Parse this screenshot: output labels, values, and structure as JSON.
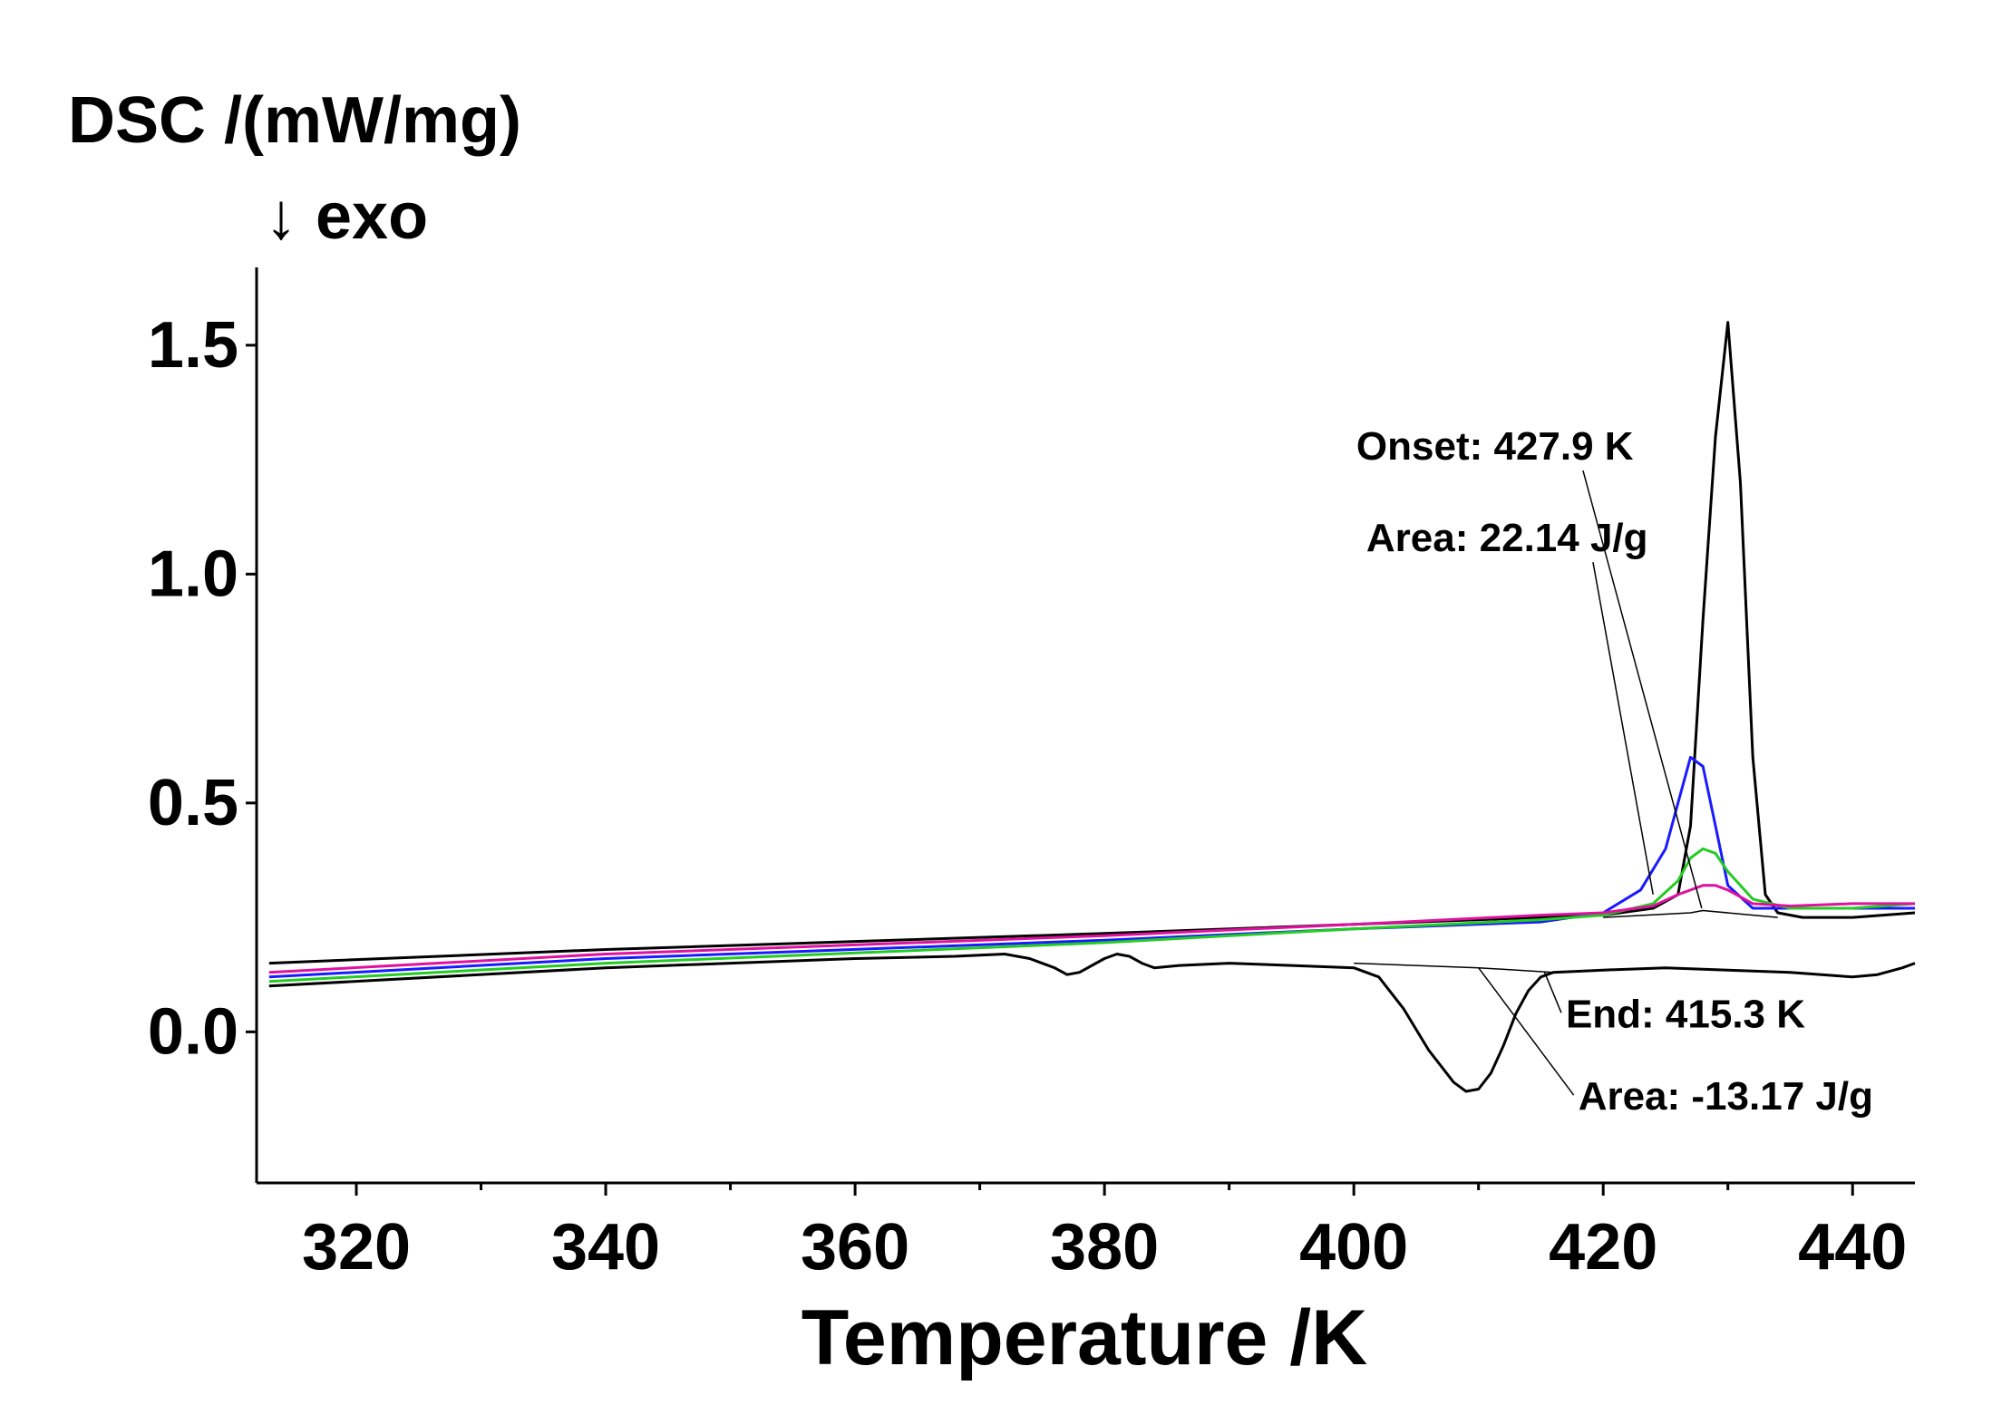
{
  "chart_data": {
    "type": "line",
    "title": "",
    "ylabel": "DSC /(mW/mg)",
    "ylabel_direction": "↓ exo",
    "xlabel": "Temperature /K",
    "xlim": [
      312,
      445
    ],
    "ylim": [
      -0.33,
      1.67
    ],
    "x_ticks": [
      320,
      340,
      360,
      380,
      400,
      420,
      440
    ],
    "x_tick_labels": [
      "320",
      "340",
      "360",
      "380",
      "400",
      "420",
      "440"
    ],
    "y_ticks": [
      0.0,
      0.5,
      1.0,
      1.5
    ],
    "y_tick_labels": [
      "0.0",
      "0.5",
      "1.0",
      "1.5"
    ],
    "grid": false,
    "series": [
      {
        "name": "heating-black",
        "color": "#000000",
        "x": [
          313,
          340,
          380,
          400,
          415,
          420,
          424,
          426,
          427,
          428,
          429,
          430,
          431,
          432,
          433,
          434,
          436,
          440,
          445
        ],
        "y": [
          0.15,
          0.18,
          0.215,
          0.235,
          0.25,
          0.255,
          0.27,
          0.3,
          0.45,
          0.9,
          1.3,
          1.55,
          1.2,
          0.6,
          0.3,
          0.26,
          0.25,
          0.25,
          0.26
        ]
      },
      {
        "name": "heating-blue",
        "color": "#1a1aff",
        "x": [
          313,
          340,
          380,
          400,
          415,
          420,
          423,
          425,
          426,
          427,
          428,
          429,
          430,
          432,
          435,
          440,
          445
        ],
        "y": [
          0.12,
          0.16,
          0.2,
          0.225,
          0.24,
          0.26,
          0.31,
          0.4,
          0.5,
          0.6,
          0.58,
          0.45,
          0.32,
          0.27,
          0.27,
          0.27,
          0.27
        ]
      },
      {
        "name": "heating-green",
        "color": "#22cc22",
        "x": [
          313,
          340,
          380,
          400,
          415,
          420,
          424,
          426,
          427,
          428,
          429,
          430,
          432,
          435,
          440,
          445
        ],
        "y": [
          0.11,
          0.15,
          0.195,
          0.225,
          0.245,
          0.255,
          0.28,
          0.33,
          0.38,
          0.4,
          0.39,
          0.35,
          0.29,
          0.27,
          0.27,
          0.28
        ]
      },
      {
        "name": "heating-magenta",
        "color": "#e0119e",
        "x": [
          313,
          340,
          380,
          400,
          415,
          420,
          424,
          426,
          428,
          429,
          430,
          432,
          435,
          440,
          445
        ],
        "y": [
          0.13,
          0.17,
          0.21,
          0.235,
          0.255,
          0.26,
          0.275,
          0.3,
          0.32,
          0.32,
          0.31,
          0.28,
          0.275,
          0.28,
          0.28
        ]
      },
      {
        "name": "cooling-black",
        "color": "#000000",
        "x": [
          313,
          340,
          360,
          368,
          372,
          374,
          376,
          377,
          378,
          380,
          381,
          382,
          383,
          384,
          386,
          390,
          395,
          400,
          402,
          404,
          406,
          408,
          409,
          410,
          411,
          412,
          413,
          414,
          415,
          416,
          420,
          425,
          430,
          435,
          440,
          442,
          444,
          445
        ],
        "y": [
          0.1,
          0.14,
          0.16,
          0.165,
          0.17,
          0.16,
          0.14,
          0.125,
          0.13,
          0.16,
          0.17,
          0.165,
          0.15,
          0.14,
          0.145,
          0.15,
          0.145,
          0.14,
          0.12,
          0.05,
          -0.04,
          -0.11,
          -0.13,
          -0.125,
          -0.09,
          -0.03,
          0.04,
          0.09,
          0.12,
          0.13,
          0.135,
          0.14,
          0.135,
          0.13,
          0.12,
          0.125,
          0.14,
          0.15
        ]
      },
      {
        "name": "baseline-heating",
        "color": "#000000",
        "x": [
          420,
          427,
          428,
          434
        ],
        "y": [
          0.25,
          0.26,
          0.265,
          0.25
        ]
      },
      {
        "name": "baseline-cooling",
        "color": "#000000",
        "x": [
          400,
          410,
          416
        ],
        "y": [
          0.15,
          0.14,
          0.13
        ]
      }
    ],
    "annotations": [
      {
        "text": "Onset: 427.9 K",
        "x": 400.2,
        "y": 1.25,
        "target_x": 427.9,
        "target_y": 0.27
      },
      {
        "text": "Area: 22.14 J/g",
        "x": 401,
        "y": 1.05,
        "target_x": 424,
        "target_y": 0.3
      },
      {
        "text": "End: 415.3 K",
        "x": 417,
        "y": 0.01,
        "target_x": 415.3,
        "target_y": 0.13
      },
      {
        "text": "Area: -13.17 J/g",
        "x": 418,
        "y": -0.17,
        "target_x": 410,
        "target_y": 0.14
      }
    ]
  }
}
